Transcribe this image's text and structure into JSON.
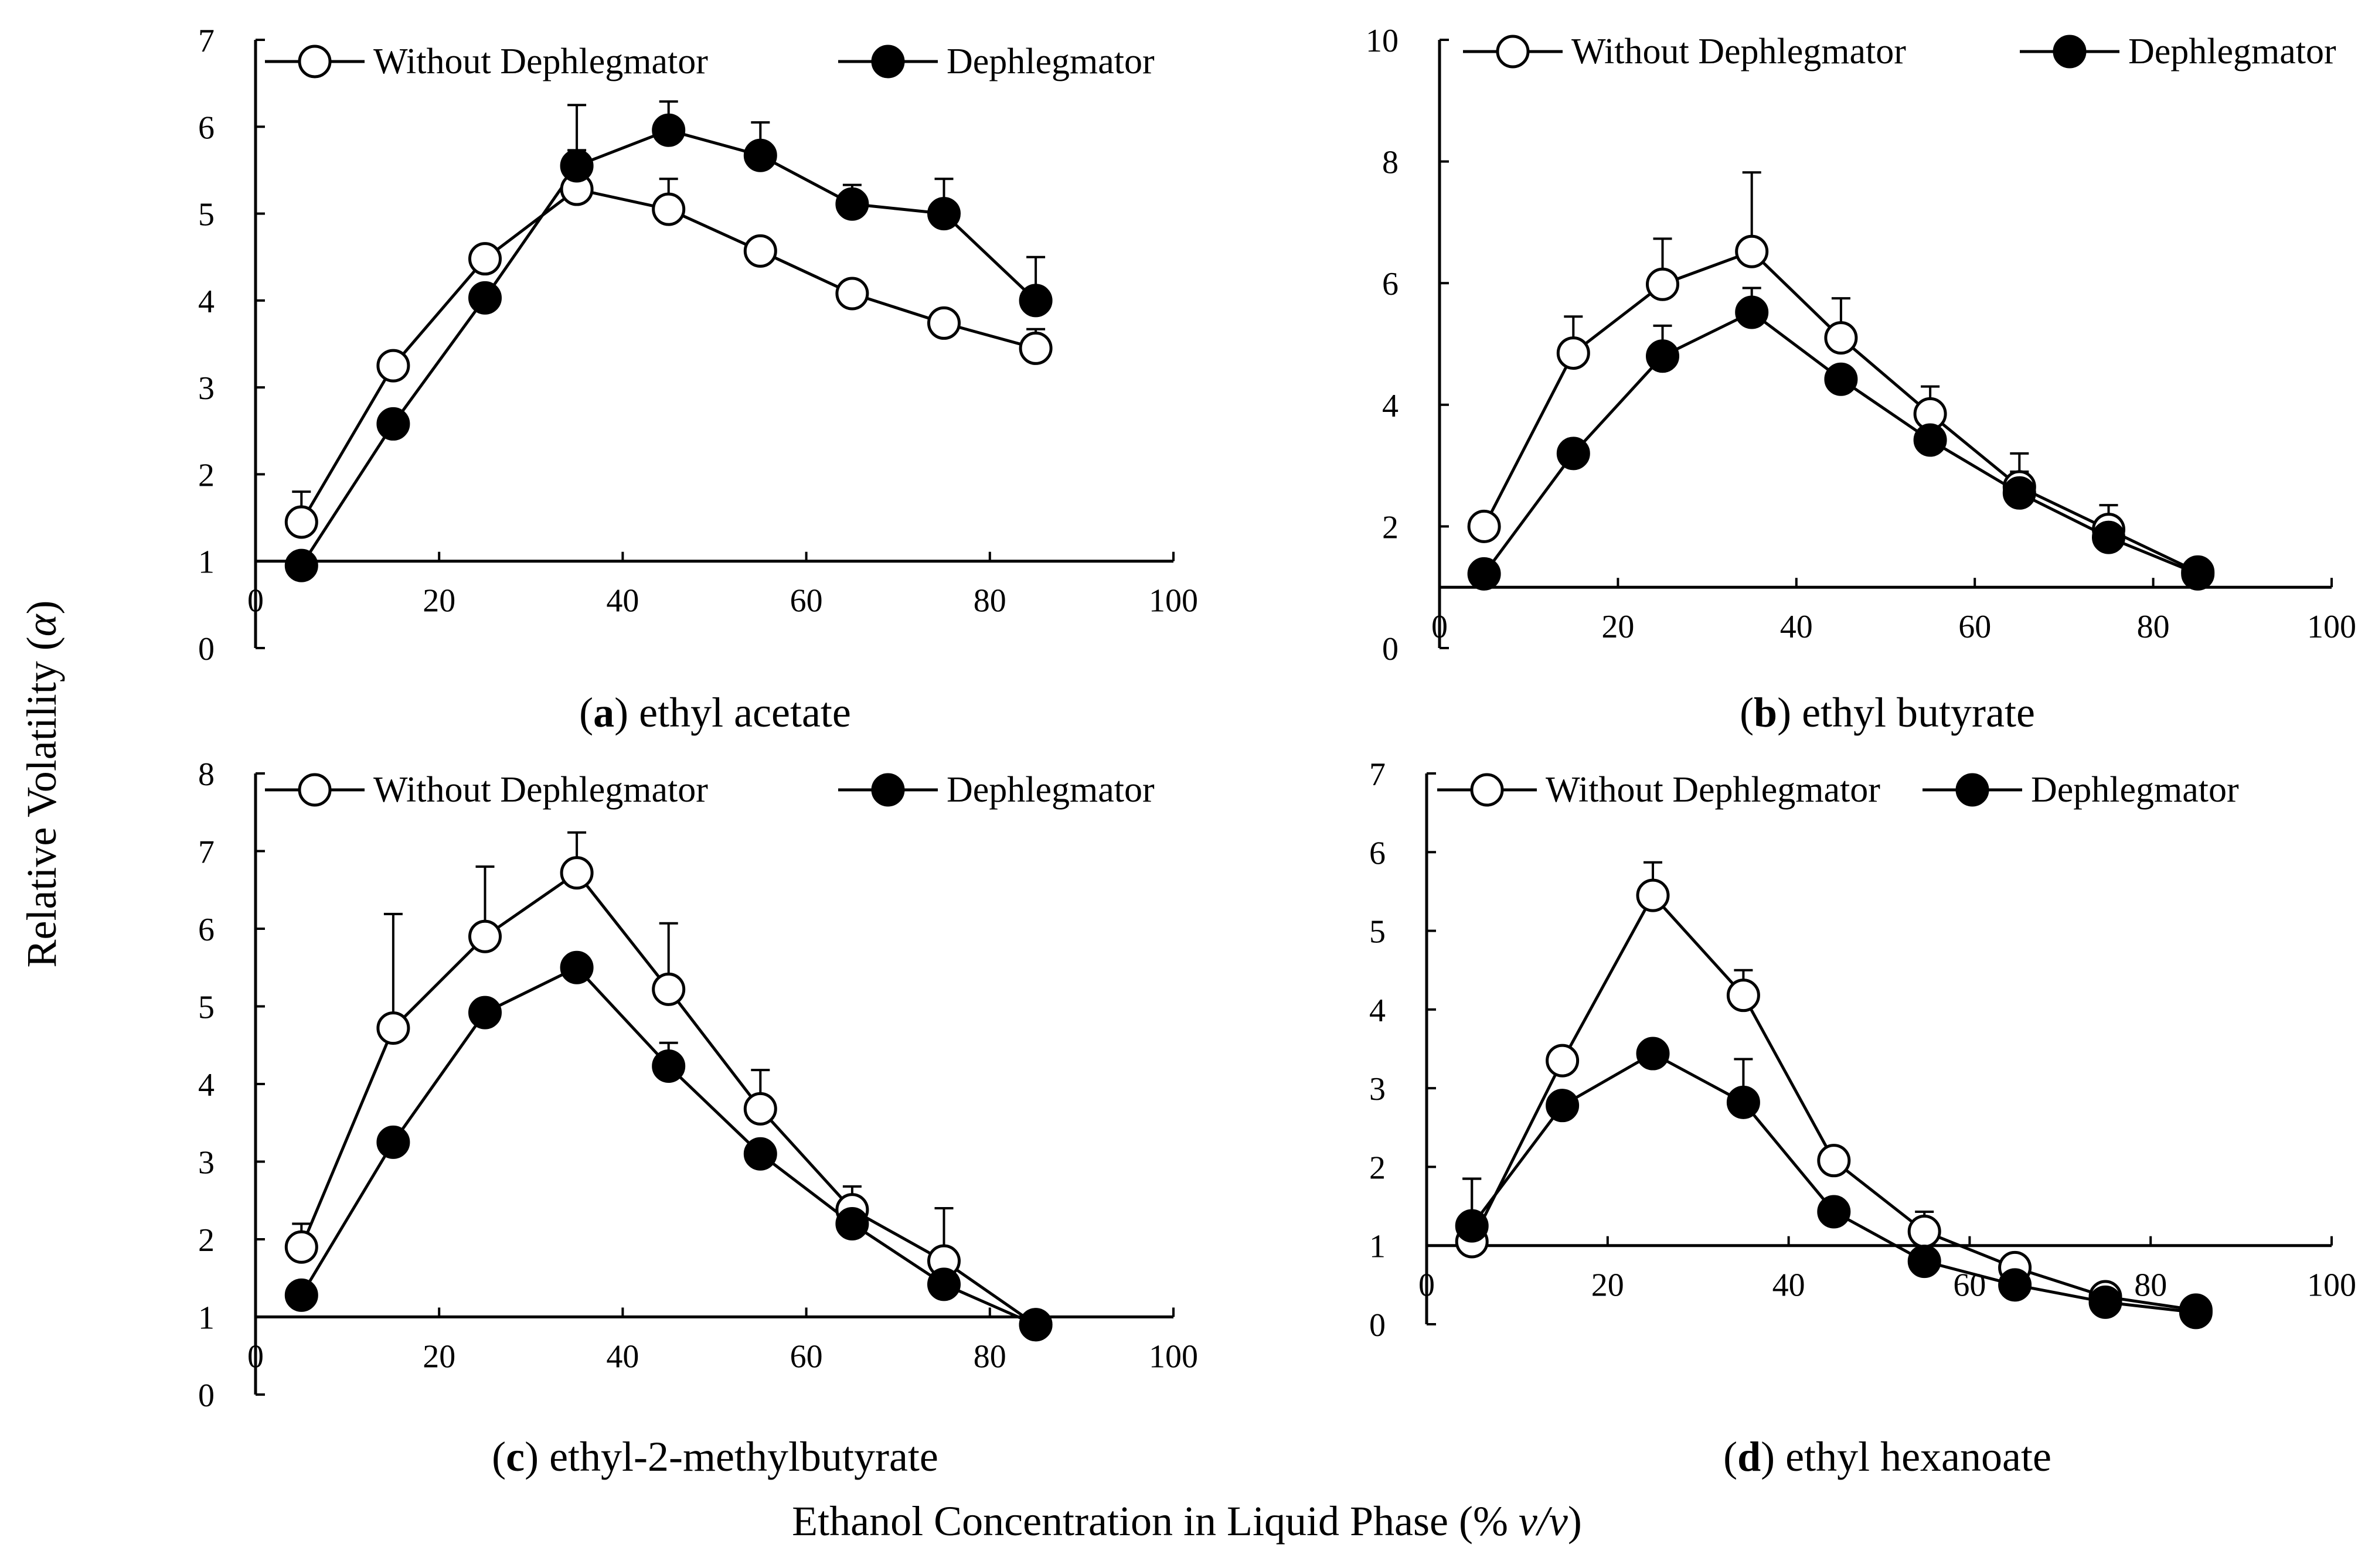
{
  "figure": {
    "ylabel_main": "Relative Volatility (",
    "ylabel_symbol": "α",
    "ylabel_close": ")",
    "xlabel_main": "Ethanol Concentration in Liquid Phase (% ",
    "xlabel_unit": "v/v",
    "xlabel_close": ")"
  },
  "chart_data": [
    {
      "type": "line",
      "panel": "a",
      "caption_letter": "a",
      "caption_text": " ethyl acetate",
      "x": [
        5,
        15,
        25,
        35,
        45,
        55,
        65,
        75,
        85
      ],
      "xlim": [
        0,
        100
      ],
      "ylim": [
        0,
        7
      ],
      "xticks": [
        0,
        20,
        40,
        60,
        80,
        100
      ],
      "yticks": [
        0,
        1,
        2,
        3,
        4,
        5,
        6,
        7
      ],
      "xaxis_at_y": 1,
      "legend": [
        "Without Dephlegmator",
        "Dephlegmator"
      ],
      "series": [
        {
          "name": "Without Dephlegmator",
          "marker": "open",
          "values": [
            1.45,
            3.25,
            4.48,
            5.28,
            5.05,
            4.57,
            4.08,
            3.74,
            3.45
          ],
          "err": [
            0.35,
            0,
            0,
            0.45,
            0.35,
            0,
            0,
            0,
            0.22
          ]
        },
        {
          "name": "Dephlegmator",
          "marker": "filled",
          "values": [
            0.95,
            2.58,
            4.03,
            5.55,
            5.96,
            5.67,
            5.11,
            5.0,
            4.0
          ],
          "err": [
            0,
            0,
            0,
            0.7,
            0.33,
            0.38,
            0.22,
            0.4,
            0.5
          ]
        }
      ]
    },
    {
      "type": "line",
      "panel": "b",
      "caption_letter": "b",
      "caption_text": " ethyl butyrate",
      "x": [
        5,
        15,
        25,
        35,
        45,
        55,
        65,
        75,
        85
      ],
      "xlim": [
        0,
        100
      ],
      "ylim": [
        0,
        10
      ],
      "xticks": [
        0,
        20,
        40,
        60,
        80,
        100
      ],
      "yticks": [
        0,
        2,
        4,
        6,
        8,
        10
      ],
      "xaxis_at_y": 1,
      "legend": [
        "Without Dephlegmator",
        "Dephlegmator"
      ],
      "series": [
        {
          "name": "Without Dephlegmator",
          "marker": "open",
          "values": [
            2.0,
            4.85,
            5.98,
            6.52,
            5.1,
            3.85,
            2.65,
            1.95,
            1.25
          ],
          "err": [
            0,
            0.6,
            0.75,
            1.3,
            0.65,
            0.45,
            0.55,
            0.4,
            0
          ]
        },
        {
          "name": "Dephlegmator",
          "marker": "filled",
          "values": [
            1.22,
            3.2,
            4.8,
            5.52,
            4.42,
            3.42,
            2.55,
            1.82,
            1.22
          ],
          "err": [
            0,
            0,
            0.5,
            0.4,
            0,
            0,
            0.35,
            0,
            0
          ]
        }
      ]
    },
    {
      "type": "line",
      "panel": "c",
      "caption_letter": "c",
      "caption_text": " ethyl-2-methylbutyrate",
      "x": [
        5,
        15,
        25,
        35,
        45,
        55,
        65,
        75,
        85
      ],
      "xlim": [
        0,
        100
      ],
      "ylim": [
        0,
        8
      ],
      "xticks": [
        0,
        20,
        40,
        60,
        80,
        100
      ],
      "yticks": [
        0,
        1,
        2,
        3,
        4,
        5,
        6,
        7,
        8
      ],
      "xaxis_at_y": 1,
      "legend": [
        "Without Dephlegmator",
        "Dephlegmator"
      ],
      "series": [
        {
          "name": "Without Dephlegmator",
          "marker": "open",
          "values": [
            1.9,
            4.72,
            5.9,
            6.72,
            5.22,
            3.68,
            2.38,
            1.72,
            0.9
          ],
          "err": [
            0.3,
            1.47,
            0.9,
            0.52,
            0.85,
            0.5,
            0.3,
            0.68,
            0
          ]
        },
        {
          "name": "Dephlegmator",
          "marker": "filled",
          "values": [
            1.28,
            3.25,
            4.92,
            5.5,
            4.23,
            3.1,
            2.2,
            1.42,
            0.9
          ],
          "err": [
            0,
            0,
            0,
            0,
            0.3,
            0,
            0,
            0.35,
            0
          ]
        }
      ]
    },
    {
      "type": "line",
      "panel": "d",
      "caption_letter": "d",
      "caption_text": " ethyl hexanoate",
      "x": [
        5,
        15,
        25,
        35,
        45,
        55,
        65,
        75,
        85
      ],
      "xlim": [
        0,
        100
      ],
      "ylim": [
        0,
        7
      ],
      "xticks": [
        0,
        20,
        40,
        60,
        80,
        100
      ],
      "yticks": [
        0,
        1,
        2,
        3,
        4,
        5,
        6,
        7
      ],
      "xaxis_at_y": 1,
      "legend": [
        "Without Dephlegmator",
        "Dephlegmator"
      ],
      "series": [
        {
          "name": "Without Dephlegmator",
          "marker": "open",
          "values": [
            1.05,
            3.35,
            5.45,
            4.18,
            2.08,
            1.18,
            0.72,
            0.35,
            0.18
          ],
          "err": [
            0.8,
            0,
            0.42,
            0.32,
            0,
            0.25,
            0,
            0,
            0
          ]
        },
        {
          "name": "Dephlegmator",
          "marker": "filled",
          "values": [
            1.25,
            2.78,
            3.44,
            2.82,
            1.43,
            0.8,
            0.5,
            0.28,
            0.15
          ],
          "err": [
            0.6,
            0,
            0,
            0.55,
            0,
            0,
            0,
            0,
            0
          ]
        }
      ]
    }
  ]
}
